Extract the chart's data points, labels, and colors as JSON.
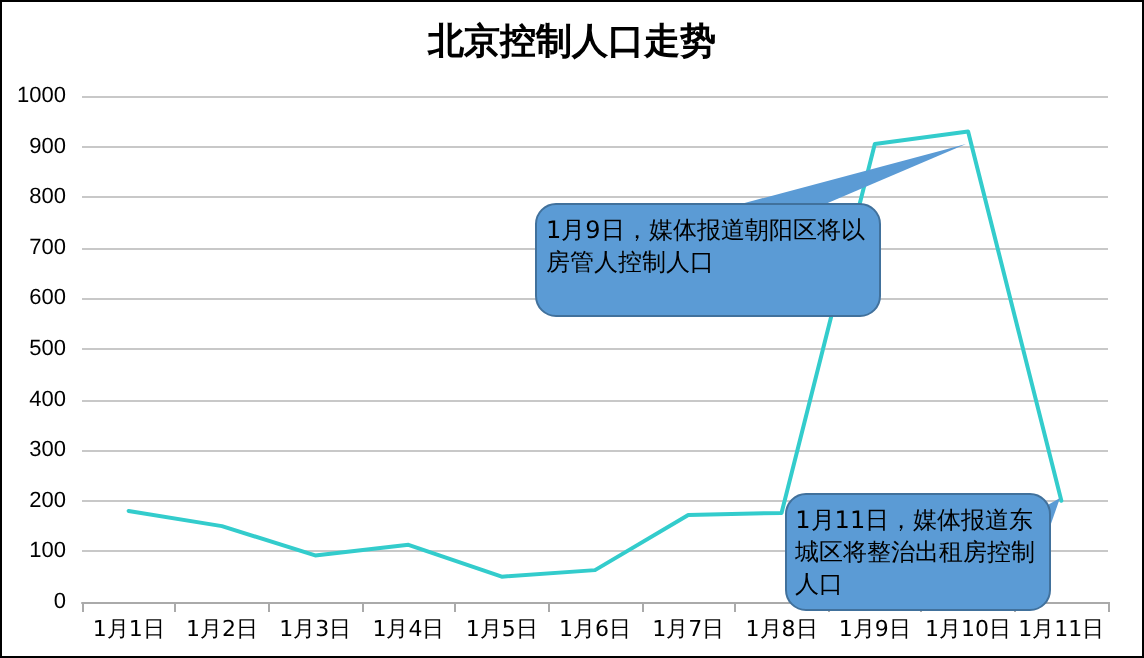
{
  "chart_data": {
    "type": "line",
    "title": "北京控制人口走势",
    "categories": [
      "1月1日",
      "1月2日",
      "1月3日",
      "1月4日",
      "1月5日",
      "1月6日",
      "1月7日",
      "1月8日",
      "1月9日",
      "1月10日",
      "1月11日"
    ],
    "series": [
      {
        "color": "#33cccc",
        "values": [
          180,
          150,
          92,
          113,
          50,
          63,
          172,
          176,
          905,
          930,
          200
        ]
      }
    ],
    "ylim": [
      0,
      1000
    ],
    "yticks": [
      0,
      100,
      200,
      300,
      400,
      500,
      600,
      700,
      800,
      900,
      1000
    ],
    "grid": "y",
    "marker": "none",
    "line_style": "solid",
    "annotations": [
      {
        "text": "1月9日，媒体报道朝阳区将以房管人控制人口",
        "x": "1月10日",
        "y": 900
      },
      {
        "text": "1月11日，媒体报道东城区将整治出租房控制人口",
        "x": "1月11日",
        "y": 200
      }
    ]
  }
}
